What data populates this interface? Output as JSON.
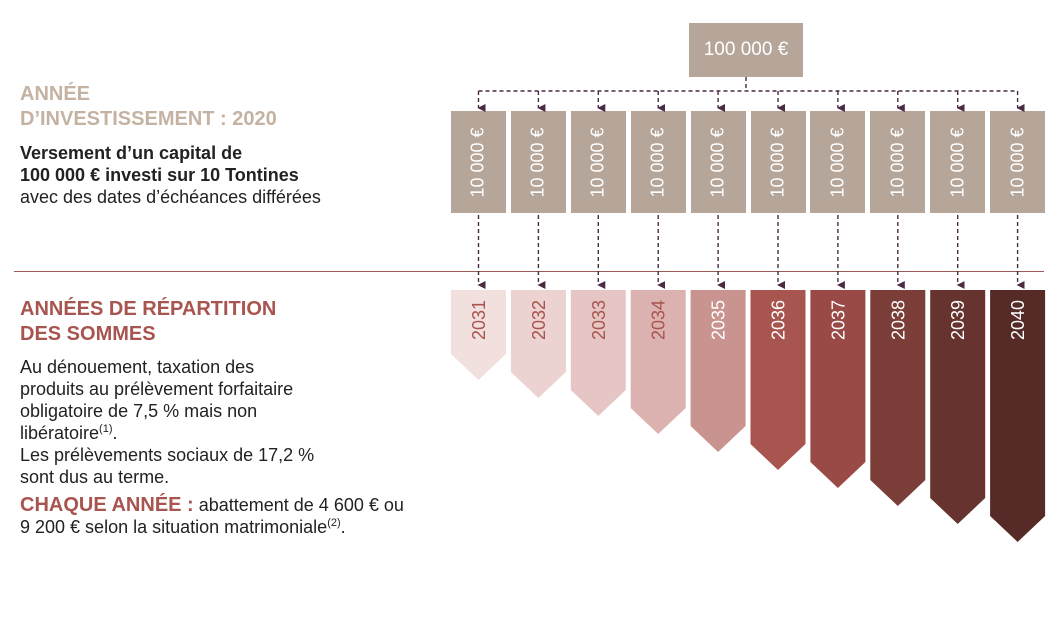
{
  "investment": {
    "heading_line1": "ANNÉE",
    "heading_line2": "D’INVESTISSEMENT : 2020",
    "desc_bold1": "Versement d’un capital de",
    "desc_bold2": "100 000 € investi sur 10 Tontines",
    "desc3": "avec des dates d’échéances différées"
  },
  "total_amount": "100 000 €",
  "tranche_amount": "10 000 €",
  "years": [
    {
      "label": "2031",
      "color": "#f2e0df",
      "text_color": "#a8544f"
    },
    {
      "label": "2032",
      "color": "#ecd2d0",
      "text_color": "#a8544f"
    },
    {
      "label": "2033",
      "color": "#e6c6c4",
      "text_color": "#a8544f"
    },
    {
      "label": "2034",
      "color": "#dcb2b0",
      "text_color": "#a8544f"
    },
    {
      "label": "2035",
      "color": "#c9938f",
      "text_color": "#ffffff"
    },
    {
      "label": "2036",
      "color": "#a8544f",
      "text_color": "#ffffff"
    },
    {
      "label": "2037",
      "color": "#9a4a46",
      "text_color": "#ffffff"
    },
    {
      "label": "2038",
      "color": "#7a3d38",
      "text_color": "#ffffff"
    },
    {
      "label": "2039",
      "color": "#66332f",
      "text_color": "#ffffff"
    },
    {
      "label": "2040",
      "color": "#552a27",
      "text_color": "#ffffff"
    }
  ],
  "distribution": {
    "heading_line1": "ANNÉES DE RÉPARTITION",
    "heading_line2": "DES SOMMES",
    "p1_line1": "Au dénouement, taxation des",
    "p1_line2": "produits au prélèvement forfaitaire",
    "p1_line3": "obligatoire de 7,5 % mais non",
    "p1_line4": "libératoire",
    "p1_ref": "(1)",
    "p1_end": ".",
    "p2_line1": "Les prélèvements sociaux de 17,2 %",
    "p2_line2": "sont dus au terme.",
    "yearly_label": "CHAQUE ANNÉE :",
    "yearly_text1": " abattement de 4 600 € ou",
    "yearly_text2": "9 200 € selon la situation matrimoniale",
    "yearly_ref": "(2)",
    "yearly_end": "."
  }
}
